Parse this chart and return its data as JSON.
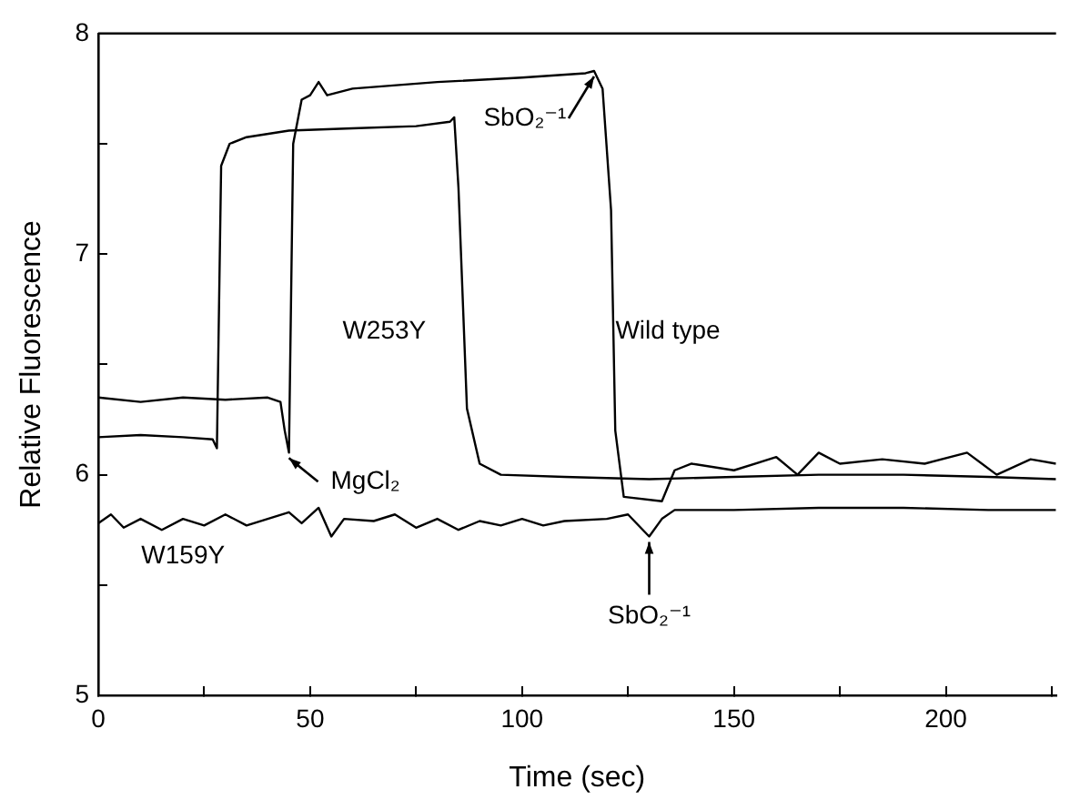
{
  "chart_data": {
    "type": "line",
    "xlabel": "Time (sec)",
    "ylabel": "Relative Fluorescence",
    "xlim": [
      0,
      226
    ],
    "xticks": [
      0,
      {
        "value": 25,
        "label": null
      },
      50,
      {
        "value": 75,
        "label": null
      },
      100,
      {
        "value": 125,
        "label": null
      },
      150,
      {
        "value": 175,
        "label": null
      },
      200,
      {
        "value": 225,
        "label": null
      }
    ],
    "ylim": [
      5,
      8
    ],
    "yticks": [
      5,
      {
        "value": 5.5,
        "label": null
      },
      6,
      {
        "value": 6.5,
        "label": null
      },
      7,
      {
        "value": 7.5,
        "label": null
      },
      8
    ],
    "grid": false,
    "legend": false,
    "marker": "none",
    "line_style": "solid",
    "series": [
      {
        "name": "W253Y",
        "color": "#000000",
        "x": [
          0,
          10,
          20,
          27,
          28,
          29,
          31,
          35,
          45,
          60,
          75,
          83,
          84,
          85,
          87,
          90,
          95,
          110,
          130,
          150,
          170,
          190,
          210,
          226
        ],
        "values": [
          6.17,
          6.18,
          6.17,
          6.16,
          6.12,
          7.4,
          7.5,
          7.53,
          7.56,
          7.57,
          7.58,
          7.6,
          7.62,
          7.3,
          6.3,
          6.05,
          6.0,
          5.99,
          5.98,
          5.99,
          6.0,
          6.0,
          5.99,
          5.98
        ]
      },
      {
        "name": "Wild type",
        "color": "#000000",
        "x": [
          0,
          10,
          20,
          30,
          40,
          43,
          44,
          45,
          46,
          48,
          50,
          52,
          54,
          60,
          80,
          100,
          115,
          117,
          119,
          121,
          122,
          124,
          133,
          136,
          140,
          150,
          160,
          165,
          170,
          175,
          185,
          195,
          205,
          212,
          220,
          226
        ],
        "values": [
          6.35,
          6.33,
          6.35,
          6.34,
          6.35,
          6.33,
          6.2,
          6.1,
          7.5,
          7.7,
          7.72,
          7.78,
          7.72,
          7.75,
          7.78,
          7.8,
          7.82,
          7.83,
          7.75,
          7.2,
          6.2,
          5.9,
          5.88,
          6.02,
          6.05,
          6.02,
          6.08,
          6.0,
          6.1,
          6.05,
          6.07,
          6.05,
          6.1,
          6.0,
          6.07,
          6.05
        ]
      },
      {
        "name": "W159Y",
        "color": "#000000",
        "x": [
          0,
          3,
          6,
          10,
          15,
          20,
          25,
          30,
          35,
          40,
          45,
          48,
          52,
          55,
          58,
          65,
          70,
          75,
          80,
          85,
          90,
          95,
          100,
          105,
          110,
          120,
          125,
          130,
          133,
          136,
          150,
          170,
          190,
          210,
          226
        ],
        "values": [
          5.78,
          5.82,
          5.76,
          5.8,
          5.75,
          5.8,
          5.77,
          5.82,
          5.77,
          5.8,
          5.83,
          5.78,
          5.85,
          5.72,
          5.8,
          5.79,
          5.82,
          5.76,
          5.8,
          5.75,
          5.79,
          5.77,
          5.8,
          5.77,
          5.79,
          5.8,
          5.82,
          5.72,
          5.8,
          5.84,
          5.84,
          5.85,
          5.85,
          5.84,
          5.84
        ]
      }
    ],
    "annotations": [
      {
        "text": "SbO₂⁻¹",
        "x": 117,
        "y": 7.83
      },
      {
        "text": "MgCl₂",
        "x": 45,
        "y": 6.1
      },
      {
        "text": "SbO₂⁻¹",
        "x": 130,
        "y": 5.72
      }
    ]
  }
}
